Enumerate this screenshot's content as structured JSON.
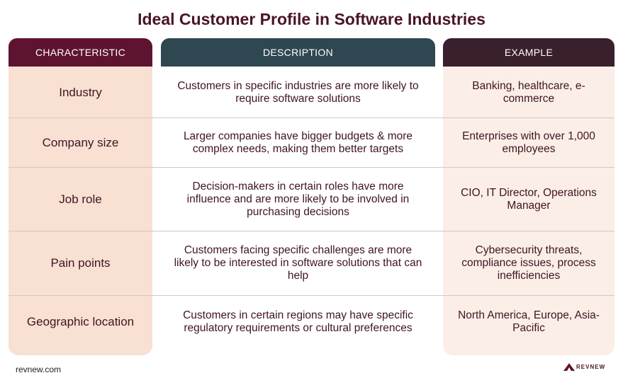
{
  "title": "Ideal Customer Profile in Software Industries",
  "headers": {
    "characteristic": "CHARACTERISTIC",
    "description": "DESCRIPTION",
    "example": "EXAMPLE"
  },
  "rows": [
    {
      "characteristic": "Industry",
      "description": "Customers in specific industries are more likely to require software solutions",
      "example": "Banking, healthcare, e-commerce"
    },
    {
      "characteristic": "Company size",
      "description": "Larger companies have bigger budgets & more complex needs, making them better targets",
      "example": "Enterprises with over 1,000 employees"
    },
    {
      "characteristic": "Job role",
      "description": "Decision-makers in certain roles have more influence and are more likely to be involved in purchasing decisions",
      "example": "CIO, IT Director, Operations Manager"
    },
    {
      "characteristic": "Pain points",
      "description": "Customers facing specific challenges are more likely to be interested in software solutions that can help",
      "example": "Cybersecurity threats, compliance issues, process inefficiencies"
    },
    {
      "characteristic": "Geographic location",
      "description": "Customers in certain regions may have specific regulatory requirements or cultural preferences",
      "example": "North America, Europe, Asia-Pacific"
    }
  ],
  "footer": {
    "site": "revnew.com",
    "logo_text": "REVNEW"
  }
}
